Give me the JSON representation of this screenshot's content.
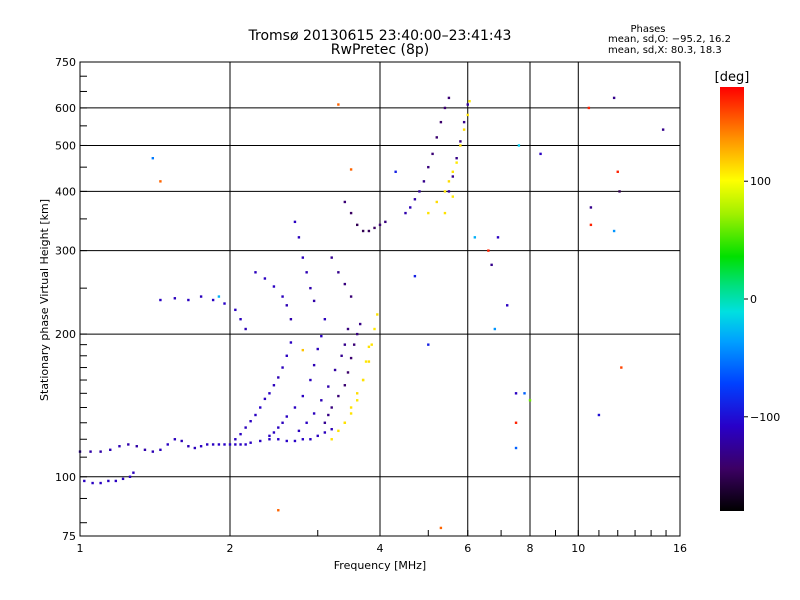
{
  "chart_data": {
    "type": "scatter",
    "title": "Tromsø 20130615 23:40:00–23:41:43",
    "subtitle": "RwPretec (8p)",
    "xlabel": "Frequency [MHz]",
    "ylabel": "Stationary phase Virtual Height [km]",
    "x_scale": "log2",
    "y_scale": "log",
    "xlim": [
      1,
      16
    ],
    "ylim": [
      75,
      750
    ],
    "x_ticks": [
      1,
      2,
      4,
      6,
      8,
      10,
      16
    ],
    "x_tick_labels": [
      "1",
      "2",
      "4",
      "6",
      "8",
      "10",
      "16"
    ],
    "y_ticks": [
      75,
      100,
      200,
      300,
      400,
      500,
      600,
      750
    ],
    "y_tick_labels": [
      "75",
      "100",
      "200",
      "300",
      "400",
      "500",
      "600",
      "750"
    ],
    "grid": true,
    "info": {
      "heading": "Phases",
      "line1": "mean, sd,O: −95.2, 16.2",
      "line2": "mean, sd,X:  80.3, 18.3"
    },
    "colorbar": {
      "label": "[deg]",
      "range": [
        -180,
        180
      ],
      "ticks": [
        100,
        0,
        -100
      ],
      "tick_labels": [
        "100",
        "0",
        "−100"
      ]
    },
    "series": [
      {
        "name": "echoes",
        "points": [
          [
            1.0,
            113,
            -120
          ],
          [
            1.05,
            113,
            -120
          ],
          [
            1.1,
            113,
            -120
          ],
          [
            1.15,
            114,
            -115
          ],
          [
            1.2,
            116,
            -115
          ],
          [
            1.25,
            117,
            -118
          ],
          [
            1.3,
            116,
            -120
          ],
          [
            1.35,
            114,
            -118
          ],
          [
            1.4,
            113,
            -115
          ],
          [
            1.45,
            114,
            -112
          ],
          [
            1.5,
            117,
            -110
          ],
          [
            1.55,
            120,
            -112
          ],
          [
            1.6,
            119,
            -115
          ],
          [
            1.65,
            116,
            -115
          ],
          [
            1.7,
            115,
            -112
          ],
          [
            1.75,
            116,
            -110
          ],
          [
            1.8,
            117,
            -110
          ],
          [
            1.85,
            117,
            -110
          ],
          [
            1.9,
            117,
            -108
          ],
          [
            1.95,
            117,
            -108
          ],
          [
            2.0,
            117,
            -108
          ],
          [
            2.05,
            117,
            -110
          ],
          [
            2.1,
            117,
            -110
          ],
          [
            2.15,
            117,
            -108
          ],
          [
            2.2,
            118,
            -110
          ],
          [
            2.3,
            119,
            -110
          ],
          [
            2.4,
            120,
            -108
          ],
          [
            2.5,
            120,
            -108
          ],
          [
            2.6,
            119,
            -108
          ],
          [
            2.7,
            119,
            -108
          ],
          [
            2.8,
            120,
            -108
          ],
          [
            2.9,
            120,
            -110
          ],
          [
            3.0,
            122,
            -110
          ],
          [
            3.1,
            124,
            -112
          ],
          [
            3.2,
            126,
            -115
          ],
          [
            1.02,
            98,
            -110
          ],
          [
            1.06,
            97,
            -110
          ],
          [
            1.1,
            97,
            -110
          ],
          [
            1.14,
            98,
            -110
          ],
          [
            1.18,
            98,
            -110
          ],
          [
            1.22,
            99,
            -110
          ],
          [
            1.26,
            100,
            -110
          ],
          [
            1.28,
            102,
            -112
          ],
          [
            2.05,
            120,
            -110
          ],
          [
            2.1,
            123,
            -110
          ],
          [
            2.15,
            127,
            -112
          ],
          [
            2.2,
            131,
            -110
          ],
          [
            2.25,
            135,
            -110
          ],
          [
            2.3,
            140,
            -108
          ],
          [
            2.35,
            146,
            -110
          ],
          [
            2.4,
            150,
            -110
          ],
          [
            2.45,
            156,
            -112
          ],
          [
            2.5,
            162,
            -115
          ],
          [
            2.55,
            170,
            -112
          ],
          [
            2.6,
            180,
            -110
          ],
          [
            2.65,
            192,
            -110
          ],
          [
            2.4,
            122,
            -110
          ],
          [
            2.45,
            124,
            -110
          ],
          [
            2.5,
            127,
            -110
          ],
          [
            2.55,
            130,
            -112
          ],
          [
            2.6,
            134,
            -110
          ],
          [
            2.7,
            140,
            -110
          ],
          [
            2.8,
            148,
            -110
          ],
          [
            2.9,
            160,
            -112
          ],
          [
            2.95,
            172,
            -115
          ],
          [
            3.0,
            186,
            -112
          ],
          [
            3.05,
            198,
            -110
          ],
          [
            3.1,
            215,
            -112
          ],
          [
            2.75,
            125,
            -112
          ],
          [
            2.85,
            130,
            -110
          ],
          [
            2.95,
            136,
            -112
          ],
          [
            3.05,
            145,
            -115
          ],
          [
            3.15,
            155,
            -118
          ],
          [
            3.25,
            168,
            -122
          ],
          [
            3.35,
            180,
            -128
          ],
          [
            3.4,
            190,
            -130
          ],
          [
            3.45,
            205,
            -135
          ],
          [
            3.1,
            130,
            -128
          ],
          [
            3.15,
            135,
            -132
          ],
          [
            3.2,
            140,
            -135
          ],
          [
            3.3,
            148,
            -138
          ],
          [
            3.4,
            156,
            -140
          ],
          [
            3.45,
            166,
            -142
          ],
          [
            3.5,
            178,
            -140
          ],
          [
            3.55,
            190,
            -138
          ],
          [
            3.6,
            200,
            -135
          ],
          [
            3.65,
            210,
            -132
          ],
          [
            3.2,
            120,
            110
          ],
          [
            3.3,
            125,
            110
          ],
          [
            3.4,
            130,
            112
          ],
          [
            3.5,
            136,
            110
          ],
          [
            3.6,
            145,
            108
          ],
          [
            3.7,
            160,
            110
          ],
          [
            3.8,
            175,
            112
          ],
          [
            3.85,
            190,
            110
          ],
          [
            3.9,
            205,
            108
          ],
          [
            3.95,
            220,
            110
          ],
          [
            3.4,
            130,
            110
          ],
          [
            3.5,
            140,
            110
          ],
          [
            3.6,
            150,
            112
          ],
          [
            3.7,
            160,
            110
          ],
          [
            3.75,
            175,
            108
          ],
          [
            3.8,
            188,
            110
          ],
          [
            1.45,
            236,
            -110
          ],
          [
            1.55,
            238,
            -112
          ],
          [
            1.65,
            236,
            -110
          ],
          [
            1.75,
            240,
            -112
          ],
          [
            1.85,
            236,
            -110
          ],
          [
            1.95,
            232,
            -108
          ],
          [
            2.05,
            225,
            -110
          ],
          [
            2.1,
            215,
            -112
          ],
          [
            2.15,
            205,
            -115
          ],
          [
            2.25,
            270,
            -112
          ],
          [
            2.35,
            262,
            -110
          ],
          [
            2.45,
            252,
            -110
          ],
          [
            2.55,
            240,
            -112
          ],
          [
            2.6,
            230,
            -115
          ],
          [
            2.65,
            215,
            -118
          ],
          [
            2.7,
            345,
            -110
          ],
          [
            2.75,
            320,
            -112
          ],
          [
            2.8,
            290,
            -112
          ],
          [
            2.85,
            270,
            -115
          ],
          [
            2.9,
            250,
            -118
          ],
          [
            2.95,
            235,
            -120
          ],
          [
            3.2,
            290,
            -128
          ],
          [
            3.3,
            270,
            -130
          ],
          [
            3.4,
            255,
            -135
          ],
          [
            3.5,
            240,
            -138
          ],
          [
            3.4,
            380,
            -138
          ],
          [
            3.5,
            360,
            -145
          ],
          [
            3.6,
            340,
            -150
          ],
          [
            3.7,
            330,
            -150
          ],
          [
            3.8,
            330,
            -148
          ],
          [
            3.9,
            335,
            -145
          ],
          [
            4.0,
            340,
            -140
          ],
          [
            4.1,
            345,
            -135
          ],
          [
            4.5,
            360,
            -118
          ],
          [
            4.6,
            370,
            -115
          ],
          [
            4.7,
            385,
            -120
          ],
          [
            4.8,
            400,
            -125
          ],
          [
            4.9,
            420,
            -130
          ],
          [
            5.0,
            450,
            -135
          ],
          [
            5.1,
            480,
            -138
          ],
          [
            5.2,
            520,
            -140
          ],
          [
            5.3,
            560,
            -142
          ],
          [
            5.4,
            600,
            -140
          ],
          [
            5.5,
            630,
            -138
          ],
          [
            5.5,
            400,
            -125
          ],
          [
            5.6,
            430,
            -128
          ],
          [
            5.7,
            470,
            -132
          ],
          [
            5.8,
            510,
            -135
          ],
          [
            5.9,
            560,
            -130
          ],
          [
            6.0,
            610,
            -125
          ],
          [
            5.4,
            400,
            110
          ],
          [
            5.5,
            420,
            112
          ],
          [
            5.6,
            440,
            110
          ],
          [
            5.7,
            460,
            108
          ],
          [
            5.8,
            500,
            110
          ],
          [
            5.9,
            540,
            112
          ],
          [
            6.0,
            580,
            110
          ],
          [
            6.05,
            620,
            108
          ],
          [
            5.0,
            360,
            110
          ],
          [
            5.2,
            380,
            112
          ],
          [
            5.4,
            360,
            110
          ],
          [
            5.6,
            390,
            108
          ],
          [
            1.4,
            470,
            -50
          ],
          [
            1.45,
            420,
            150
          ],
          [
            1.9,
            240,
            -30
          ],
          [
            2.5,
            85,
            150
          ],
          [
            2.8,
            185,
            120
          ],
          [
            3.3,
            610,
            150
          ],
          [
            3.5,
            445,
            150
          ],
          [
            4.3,
            440,
            -90
          ],
          [
            4.7,
            265,
            -90
          ],
          [
            5.0,
            190,
            -90
          ],
          [
            5.3,
            78,
            150
          ],
          [
            6.2,
            320,
            -30
          ],
          [
            6.6,
            300,
            170
          ],
          [
            6.7,
            280,
            -130
          ],
          [
            6.8,
            205,
            -40
          ],
          [
            6.9,
            320,
            -110
          ],
          [
            7.2,
            230,
            -110
          ],
          [
            7.5,
            150,
            -110
          ],
          [
            7.5,
            115,
            -60
          ],
          [
            7.5,
            130,
            170
          ],
          [
            7.6,
            500,
            -20
          ],
          [
            7.8,
            150,
            -60
          ],
          [
            8.0,
            145,
            60
          ],
          [
            8.4,
            480,
            -110
          ],
          [
            10.5,
            600,
            170
          ],
          [
            10.6,
            370,
            -130
          ],
          [
            10.6,
            340,
            170
          ],
          [
            11.0,
            135,
            -100
          ],
          [
            11.8,
            630,
            -130
          ],
          [
            11.8,
            330,
            -40
          ],
          [
            12.0,
            440,
            170
          ],
          [
            12.1,
            400,
            -150
          ],
          [
            12.2,
            170,
            160
          ],
          [
            14.8,
            540,
            -130
          ]
        ]
      }
    ]
  }
}
